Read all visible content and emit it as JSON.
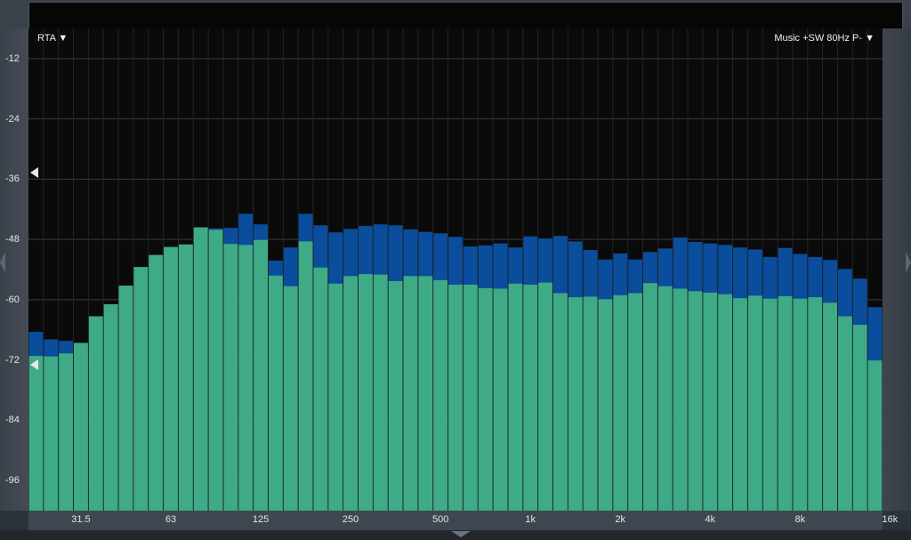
{
  "rta_title": "RTA ▼",
  "preset_label": "Music +SW 80Hz P- ▼",
  "colors": {
    "peak": "#0a4d9c",
    "level": "#3faa86",
    "background": "#0a0a0a",
    "grid": "#3a3a3a"
  },
  "chart_data": {
    "type": "bar",
    "title": "",
    "xlabel": "",
    "ylabel": "",
    "ylim": [
      -102,
      -6
    ],
    "y_ticks": [
      "-12",
      "-24",
      "-36",
      "-48",
      "-60",
      "-72",
      "-84",
      "-96"
    ],
    "x_tick_labels": [
      "31.5",
      "63",
      "125",
      "250",
      "500",
      "1k",
      "2k",
      "4k",
      "8k",
      "16k"
    ],
    "band_count": 57,
    "grid": true,
    "series": [
      {
        "values": [
          -71.2,
          -71.3,
          -70.7,
          -68.6,
          -63.3,
          -60.9,
          -57.2,
          -53.5,
          -51.1,
          -49.5,
          -49.0,
          -45.6,
          -46.1,
          -48.9,
          -49.1,
          -48.1,
          -55.2,
          -57.3,
          -48.4,
          -53.6,
          -56.8,
          -55.3,
          -54.9,
          -55.0,
          -56.3,
          -55.3,
          -55.3,
          -56.1,
          -57.0,
          -57.0,
          -57.7,
          -57.8,
          -56.8,
          -57.0,
          -56.6,
          -58.7,
          -59.5,
          -59.4,
          -59.9,
          -59.1,
          -58.7,
          -56.7,
          -57.3,
          -57.8,
          -58.3,
          -58.6,
          -58.9,
          -59.7,
          -59.2,
          -59.8,
          -59.3,
          -59.8,
          -59.5,
          -60.6,
          -63.3,
          -65.0,
          -72.1
        ]
      },
      {
        "values": [
          -66.4,
          -67.9,
          -68.2,
          -68.6,
          -63.3,
          -60.9,
          -57.2,
          -53.5,
          -51.1,
          -49.5,
          -49.0,
          -45.6,
          -45.8,
          -45.7,
          -42.9,
          -45.0,
          -52.2,
          -49.6,
          -42.9,
          -45.2,
          -46.6,
          -45.9,
          -45.3,
          -45.0,
          -45.2,
          -46.0,
          -46.5,
          -46.8,
          -47.5,
          -49.4,
          -49.2,
          -48.8,
          -49.6,
          -47.4,
          -47.8,
          -47.3,
          -48.4,
          -50.1,
          -52.0,
          -50.8,
          -52.0,
          -50.5,
          -49.8,
          -47.6,
          -48.5,
          -48.8,
          -49.1,
          -49.6,
          -50.0,
          -51.5,
          -49.7,
          -50.9,
          -51.5,
          -52.1,
          -53.9,
          -55.8,
          -61.5
        ]
      }
    ]
  }
}
